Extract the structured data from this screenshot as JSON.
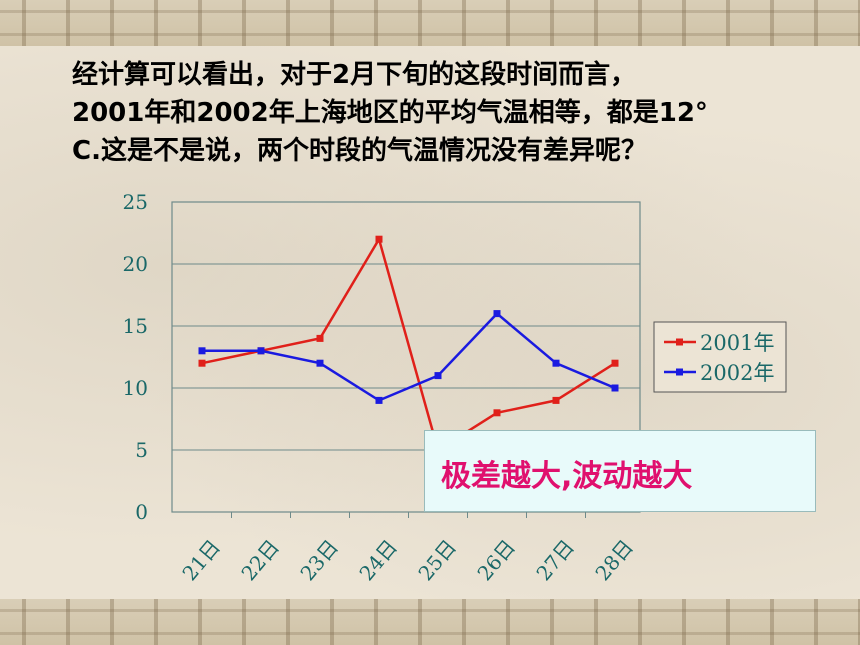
{
  "slide": {
    "heading_lines": [
      "经计算可以看出，对于2月下旬的这段时间而言，",
      "2001年和2002年上海地区的平均气温相等，都是12°",
      "C.这是不是说，两个时段的气温情况没有差异呢？"
    ],
    "callout": "极差越大,波动越大"
  },
  "chart_data": {
    "type": "line",
    "categories": [
      "21日",
      "22日",
      "23日",
      "24日",
      "25日",
      "26日",
      "27日",
      "28日"
    ],
    "series": [
      {
        "name": "2001年",
        "color": "#e0201a",
        "marker": "square",
        "values": [
          12,
          13,
          14,
          22,
          5,
          8,
          9,
          12
        ]
      },
      {
        "name": "2002年",
        "color": "#1a1ae0",
        "marker": "square",
        "values": [
          13,
          13,
          12,
          9,
          11,
          16,
          12,
          10
        ]
      }
    ],
    "y_ticks": [
      0,
      5,
      10,
      15,
      20,
      25
    ],
    "ylim": [
      0,
      25
    ],
    "grid": true,
    "legend": "right",
    "title": "",
    "xlabel": "",
    "ylabel": ""
  }
}
